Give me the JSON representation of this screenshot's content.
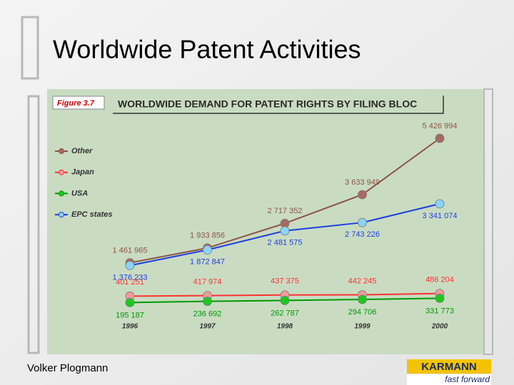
{
  "slide": {
    "title": "Worldwide Patent Activities",
    "footer": "Volker Plogmann",
    "logo": {
      "name": "KARMANN",
      "tagline": "fast forward"
    }
  },
  "chart_data": {
    "type": "line",
    "figure_label": "Figure 3.7",
    "title": "WORLDWIDE DEMAND FOR PATENT RIGHTS BY FILING BLOC",
    "categories": [
      "1996",
      "1997",
      "1998",
      "1999",
      "2000"
    ],
    "series": [
      {
        "name": "Other",
        "color": "#8e5344",
        "marker_color": "#a86a60",
        "values": [
          1461965,
          1933856,
          2717352,
          3633949,
          5426994
        ],
        "value_labels": [
          "1 461 965",
          "1 933 856",
          "2 717 352",
          "3 633 949",
          "5 426 994"
        ]
      },
      {
        "name": "Japan",
        "color": "#ff3030",
        "marker_color": "#f09a9a",
        "values": [
          401251,
          417974,
          437375,
          442245,
          486204
        ],
        "value_labels": [
          "401 251",
          "417 974",
          "437 375",
          "442 245",
          "486 204"
        ]
      },
      {
        "name": "USA",
        "color": "#009a00",
        "marker_color": "#1ec81e",
        "values": [
          195187,
          236692,
          262787,
          294706,
          331773
        ],
        "value_labels": [
          "195 187",
          "236 692",
          "262 787",
          "294 706",
          "331 773"
        ]
      },
      {
        "name": "EPC states",
        "color": "#1f3ee0",
        "marker_color": "#8ad4fa",
        "values": [
          1376233,
          1872847,
          2481575,
          2743226,
          3341074
        ],
        "value_labels": [
          "1 376 233",
          "1 872 847",
          "2 481 575",
          "2 743 226",
          "3 341 074"
        ]
      }
    ]
  }
}
